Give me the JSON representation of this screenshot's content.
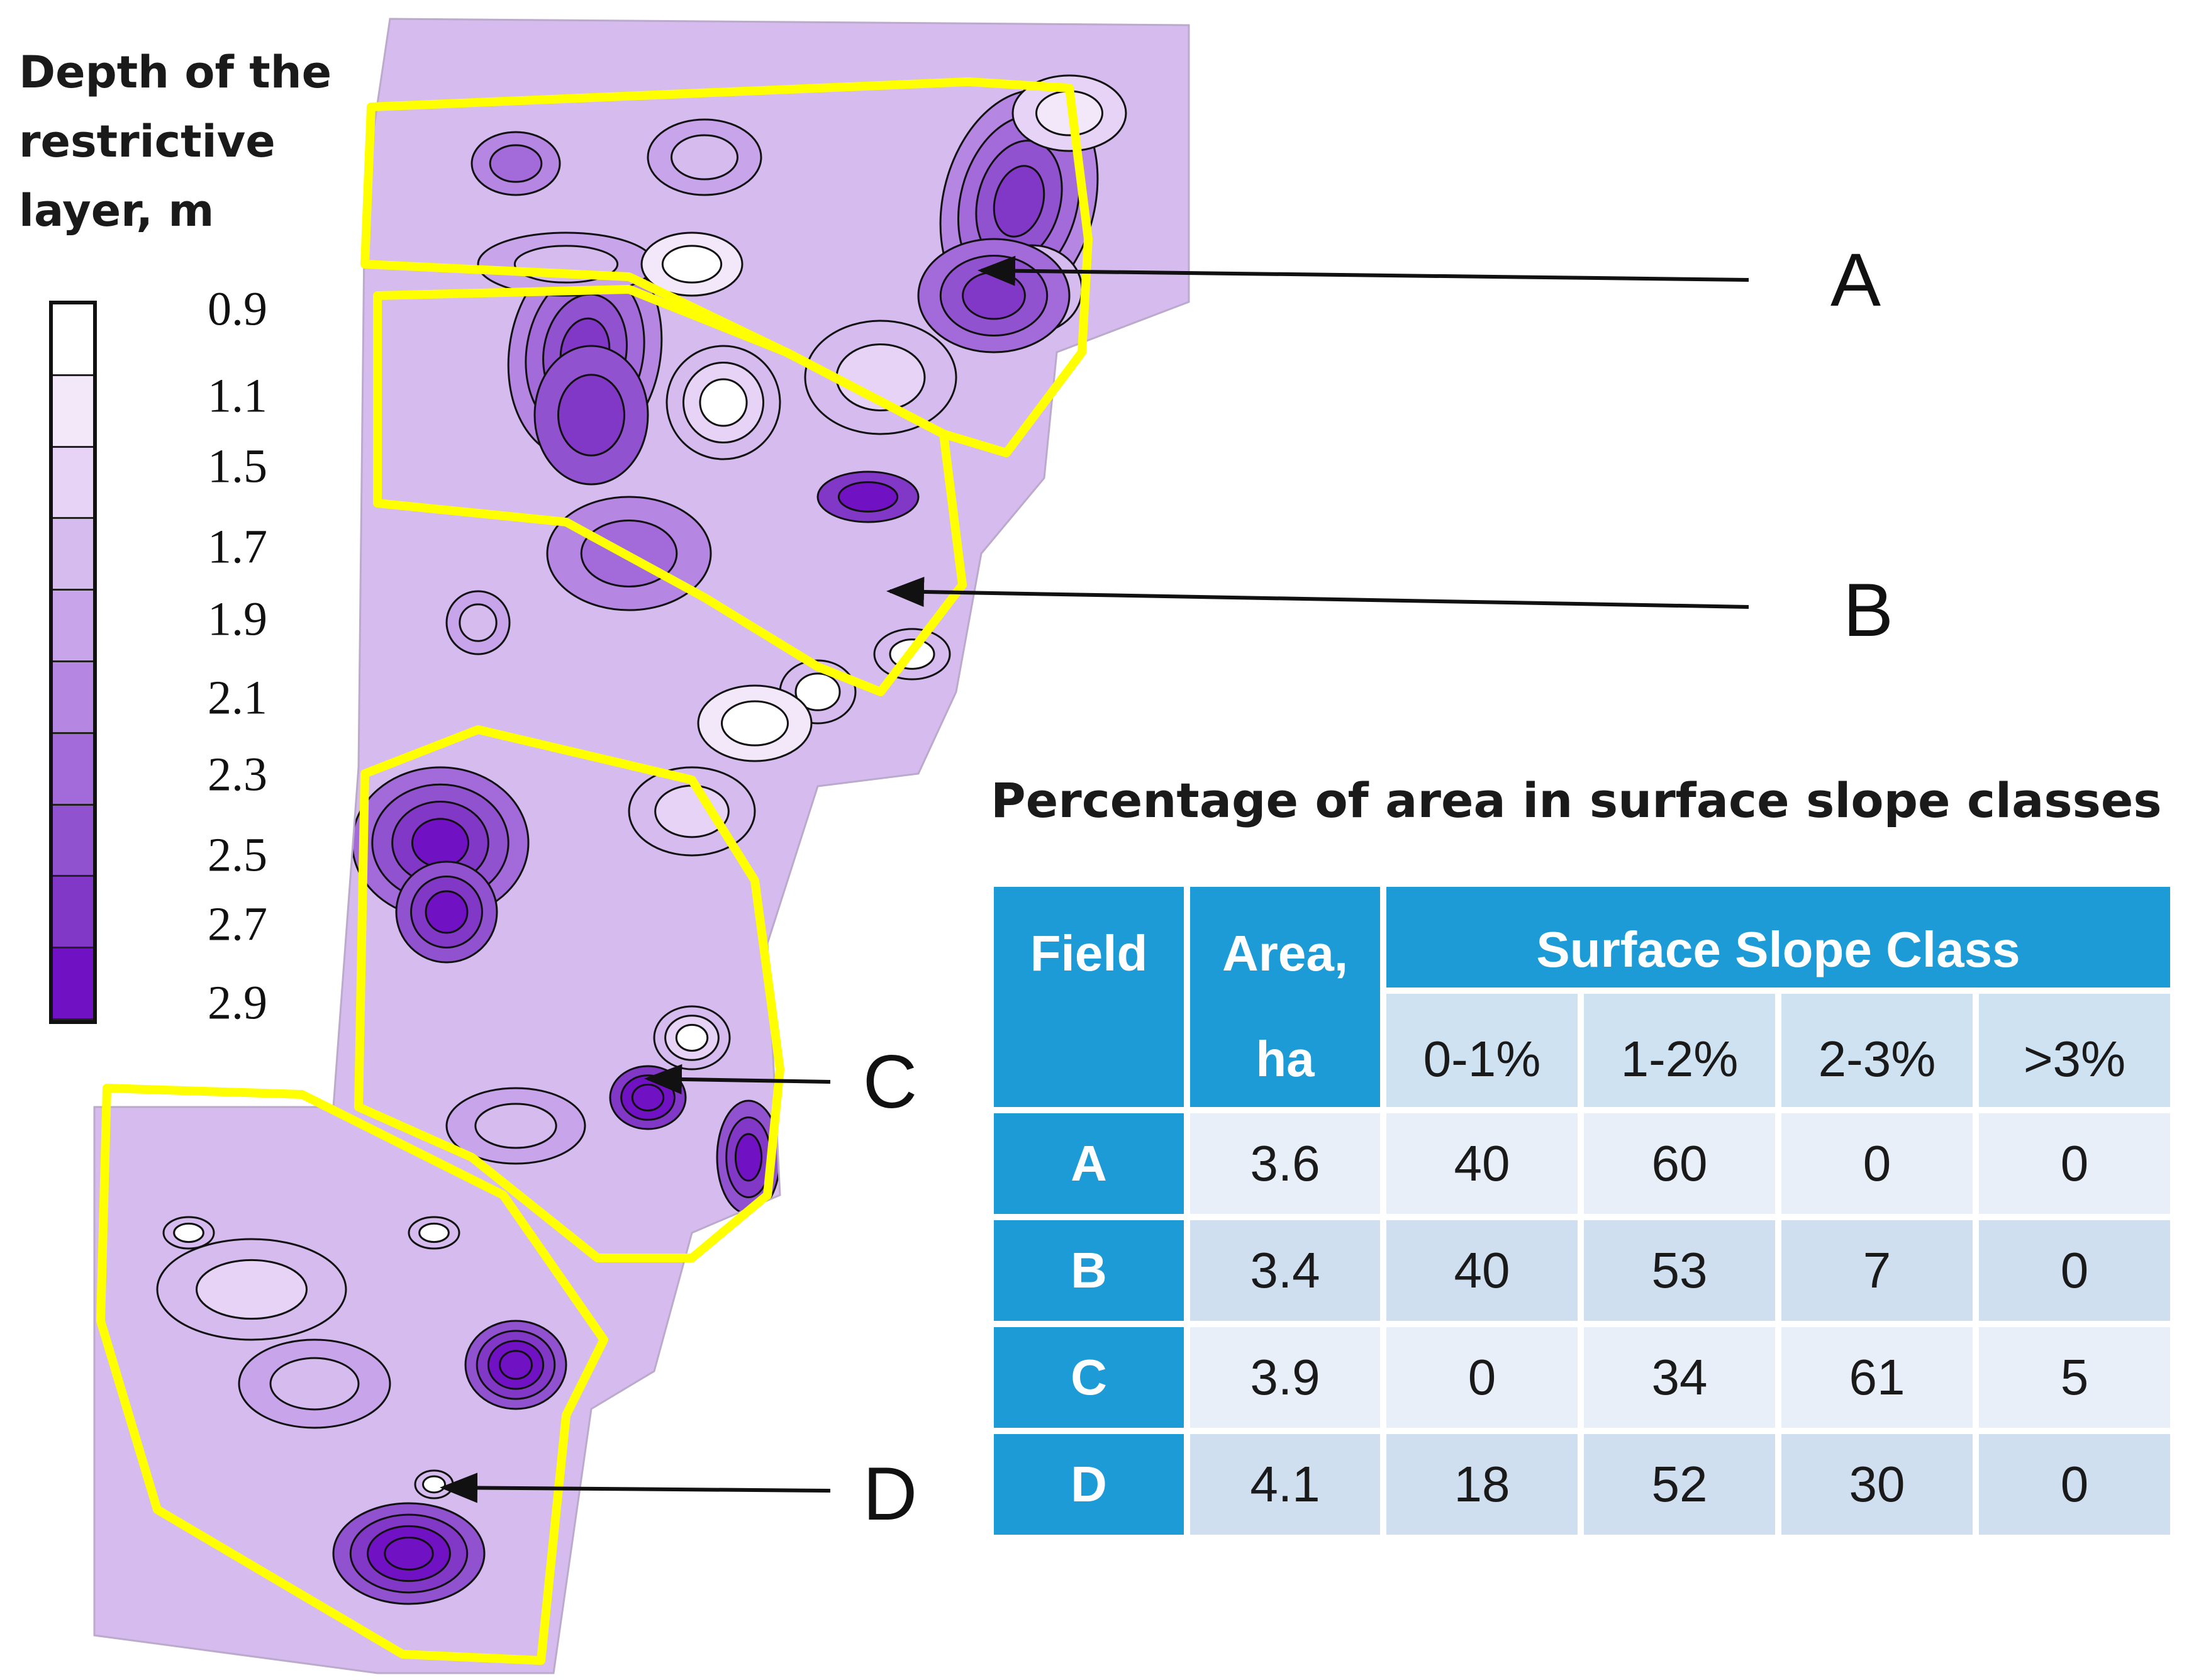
{
  "legend": {
    "title_lines": [
      "Depth of the",
      "restrictive",
      "layer, m"
    ],
    "labels": [
      "0.9",
      "1.1",
      "1.5",
      "1.7",
      "1.9",
      "2.1",
      "2.3",
      "2.5",
      "2.7",
      "2.9"
    ],
    "colors": [
      "#ffffff",
      "#f2e8fa",
      "#e6d3f5",
      "#d6bbef",
      "#c8a4ea",
      "#b687e2",
      "#a36bd9",
      "#9152cf",
      "#8238c6",
      "#7012c4"
    ]
  },
  "map": {
    "zone_outline_color": "#ffff00",
    "callouts": [
      "A",
      "B",
      "C",
      "D"
    ]
  },
  "table": {
    "title": "Percentage of area in surface slope classes",
    "header": {
      "field": "Field",
      "area_line1": "Area,",
      "area_line2": "ha",
      "slope_group": "Surface Slope Class",
      "slope_classes": [
        "0-1%",
        "1-2%",
        "2-3%",
        ">3%"
      ]
    },
    "rows": [
      {
        "field": "A",
        "area": "3.6",
        "values": [
          "40",
          "60",
          "0",
          "0"
        ]
      },
      {
        "field": "B",
        "area": "3.4",
        "values": [
          "40",
          "53",
          "7",
          "0"
        ]
      },
      {
        "field": "C",
        "area": "3.9",
        "values": [
          "0",
          "34",
          "61",
          "5"
        ]
      },
      {
        "field": "D",
        "area": "4.1",
        "values": [
          "18",
          "52",
          "30",
          "0"
        ]
      }
    ],
    "colors": {
      "header": "#1d9bd7",
      "row_light": "#e8eff8",
      "row_dark": "#cfdff0"
    }
  }
}
